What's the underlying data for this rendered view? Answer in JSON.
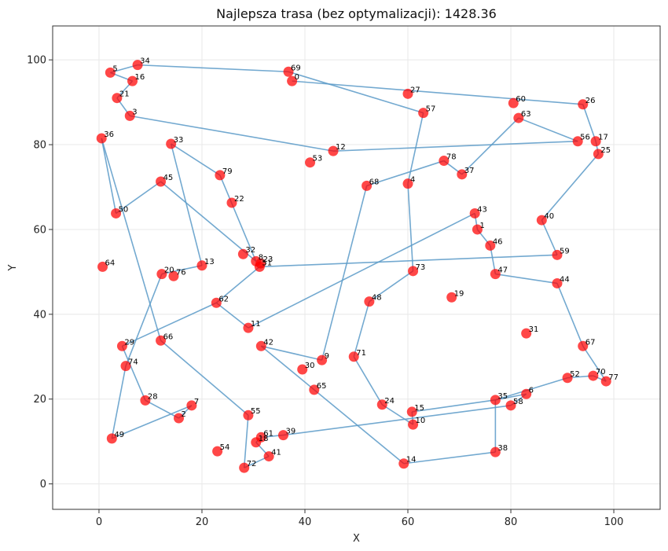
{
  "chart_data": {
    "type": "scatter",
    "title": "Najlepsza trasa (bez optymalizacji): 1428.36",
    "xlabel": "X",
    "ylabel": "Y",
    "xlim": [
      -9,
      109
    ],
    "ylim": [
      -6,
      108
    ],
    "xticks": [
      0,
      20,
      40,
      60,
      80,
      100
    ],
    "yticks": [
      0,
      20,
      40,
      60,
      80,
      100
    ],
    "grid": true,
    "point_color": "#ff0000",
    "line_color": "#5b9bc8",
    "points": [
      {
        "id": "0",
        "x": 37.5,
        "y": 95.0
      },
      {
        "id": "1",
        "x": 73.5,
        "y": 60.0
      },
      {
        "id": "2",
        "x": 15.5,
        "y": 15.5
      },
      {
        "id": "3",
        "x": 6.0,
        "y": 86.8
      },
      {
        "id": "4",
        "x": 60.0,
        "y": 70.8
      },
      {
        "id": "5",
        "x": 2.2,
        "y": 97.0
      },
      {
        "id": "6",
        "x": 83.0,
        "y": 21.2
      },
      {
        "id": "7",
        "x": 18.0,
        "y": 18.5
      },
      {
        "id": "8",
        "x": 30.5,
        "y": 52.5
      },
      {
        "id": "9",
        "x": 43.3,
        "y": 29.2
      },
      {
        "id": "10",
        "x": 61.0,
        "y": 14.0
      },
      {
        "id": "11",
        "x": 29.0,
        "y": 36.8
      },
      {
        "id": "12",
        "x": 45.5,
        "y": 78.5
      },
      {
        "id": "13",
        "x": 20.0,
        "y": 51.5
      },
      {
        "id": "14",
        "x": 59.2,
        "y": 4.8
      },
      {
        "id": "15",
        "x": 60.8,
        "y": 17.0
      },
      {
        "id": "16",
        "x": 6.5,
        "y": 95.0
      },
      {
        "id": "17",
        "x": 96.5,
        "y": 80.8
      },
      {
        "id": "18",
        "x": 30.5,
        "y": 9.8
      },
      {
        "id": "19",
        "x": 68.5,
        "y": 44.0
      },
      {
        "id": "20",
        "x": 12.2,
        "y": 49.5
      },
      {
        "id": "21",
        "x": 3.5,
        "y": 91.0
      },
      {
        "id": "22",
        "x": 25.8,
        "y": 66.3
      },
      {
        "id": "23",
        "x": 31.4,
        "y": 52.0
      },
      {
        "id": "24",
        "x": 55.0,
        "y": 18.7
      },
      {
        "id": "25",
        "x": 97.0,
        "y": 77.8
      },
      {
        "id": "26",
        "x": 94.0,
        "y": 89.5
      },
      {
        "id": "27",
        "x": 60.0,
        "y": 92.0
      },
      {
        "id": "28",
        "x": 9.0,
        "y": 19.7
      },
      {
        "id": "29",
        "x": 4.5,
        "y": 32.5
      },
      {
        "id": "30",
        "x": 39.5,
        "y": 27.0
      },
      {
        "id": "31",
        "x": 83.0,
        "y": 35.5
      },
      {
        "id": "32",
        "x": 28.0,
        "y": 54.2
      },
      {
        "id": "33",
        "x": 14.0,
        "y": 80.2
      },
      {
        "id": "34",
        "x": 7.5,
        "y": 98.8
      },
      {
        "id": "35",
        "x": 77.0,
        "y": 19.8
      },
      {
        "id": "36",
        "x": 0.5,
        "y": 81.5
      },
      {
        "id": "37",
        "x": 70.5,
        "y": 73.0
      },
      {
        "id": "38",
        "x": 77.0,
        "y": 7.5
      },
      {
        "id": "39",
        "x": 35.8,
        "y": 11.5
      },
      {
        "id": "40",
        "x": 86.0,
        "y": 62.2
      },
      {
        "id": "41",
        "x": 33.0,
        "y": 6.5
      },
      {
        "id": "42",
        "x": 31.5,
        "y": 32.5
      },
      {
        "id": "43",
        "x": 73.0,
        "y": 63.8
      },
      {
        "id": "44",
        "x": 89.0,
        "y": 47.3
      },
      {
        "id": "45",
        "x": 12.0,
        "y": 71.3
      },
      {
        "id": "46",
        "x": 76.0,
        "y": 56.2
      },
      {
        "id": "47",
        "x": 77.0,
        "y": 49.5
      },
      {
        "id": "48",
        "x": 52.5,
        "y": 43.0
      },
      {
        "id": "49",
        "x": 2.5,
        "y": 10.7
      },
      {
        "id": "50",
        "x": 3.3,
        "y": 63.8
      },
      {
        "id": "51",
        "x": 31.2,
        "y": 51.2
      },
      {
        "id": "52",
        "x": 91.0,
        "y": 25.0
      },
      {
        "id": "53",
        "x": 41.0,
        "y": 75.8
      },
      {
        "id": "54",
        "x": 23.0,
        "y": 7.7
      },
      {
        "id": "55",
        "x": 29.0,
        "y": 16.2
      },
      {
        "id": "56",
        "x": 93.0,
        "y": 80.8
      },
      {
        "id": "57",
        "x": 63.0,
        "y": 87.5
      },
      {
        "id": "58",
        "x": 80.0,
        "y": 18.5
      },
      {
        "id": "59",
        "x": 89.0,
        "y": 54.0
      },
      {
        "id": "60",
        "x": 80.5,
        "y": 89.8
      },
      {
        "id": "61",
        "x": 31.5,
        "y": 11.0
      },
      {
        "id": "62",
        "x": 22.8,
        "y": 42.7
      },
      {
        "id": "63",
        "x": 81.5,
        "y": 86.3
      },
      {
        "id": "64",
        "x": 0.7,
        "y": 51.2
      },
      {
        "id": "65",
        "x": 41.8,
        "y": 22.2
      },
      {
        "id": "66",
        "x": 12.0,
        "y": 33.8
      },
      {
        "id": "67",
        "x": 94.0,
        "y": 32.5
      },
      {
        "id": "68",
        "x": 52.0,
        "y": 70.3
      },
      {
        "id": "69",
        "x": 36.8,
        "y": 97.2
      },
      {
        "id": "70",
        "x": 96.0,
        "y": 25.5
      },
      {
        "id": "71",
        "x": 49.5,
        "y": 30.0
      },
      {
        "id": "72",
        "x": 28.2,
        "y": 3.8
      },
      {
        "id": "73",
        "x": 61.0,
        "y": 50.2
      },
      {
        "id": "74",
        "x": 5.2,
        "y": 27.8
      },
      {
        "id": "76",
        "x": 14.5,
        "y": 49.0
      },
      {
        "id": "77",
        "x": 98.5,
        "y": 24.2
      },
      {
        "id": "78",
        "x": 67.0,
        "y": 76.2
      },
      {
        "id": "79",
        "x": 23.5,
        "y": 72.8
      }
    ],
    "route": [
      "0",
      "26",
      "17",
      "25",
      "40",
      "59",
      "51",
      "62",
      "11",
      "43",
      "1",
      "46",
      "47",
      "44",
      "67",
      "77",
      "70",
      "52",
      "35",
      "15",
      "10",
      "24",
      "71",
      "48",
      "73",
      "4",
      "57",
      "69",
      "34",
      "5",
      "16",
      "21",
      "3",
      "12",
      "56",
      "63",
      "37",
      "78",
      "68",
      "9",
      "42",
      "65",
      "14",
      "38",
      "35",
      "6",
      "58",
      "39",
      "61",
      "18",
      "41",
      "72",
      "55",
      "66",
      "36",
      "50",
      "45",
      "8",
      "79",
      "33",
      "13",
      "20",
      "74",
      "49",
      "7",
      "2",
      "28",
      "29",
      "62"
    ]
  }
}
